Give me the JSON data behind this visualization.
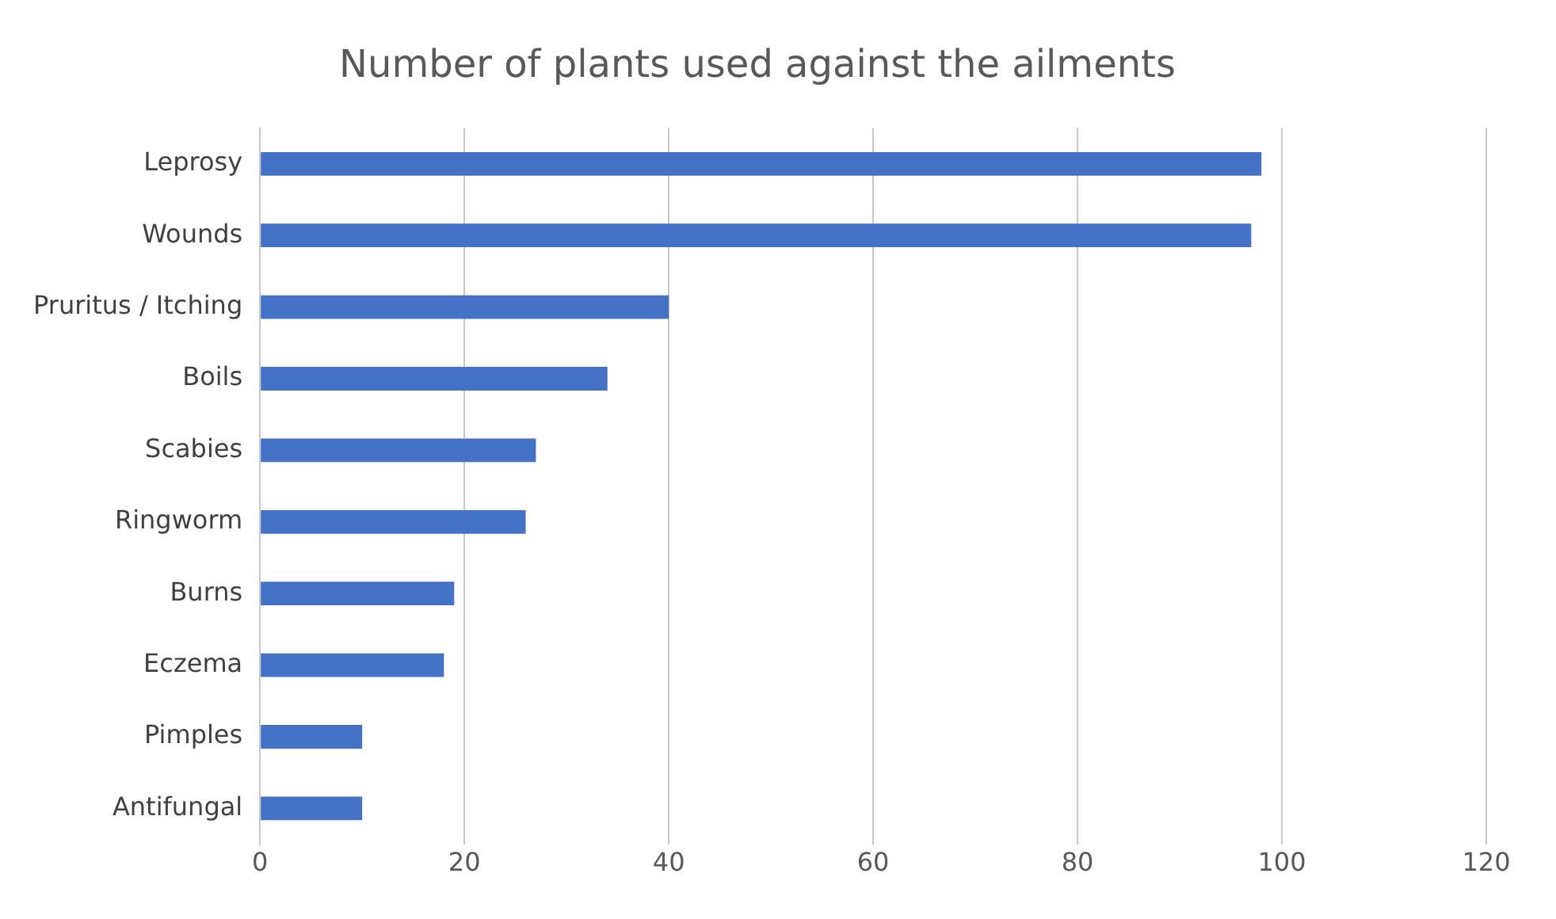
{
  "chart_data": {
    "type": "bar",
    "orientation": "horizontal",
    "title": "Number of plants used against the ailments",
    "categories": [
      "Leprosy",
      "Wounds",
      "Pruritus / Itching",
      "Boils",
      "Scabies",
      "Ringworm",
      "Burns",
      "Eczema",
      "Pimples",
      "Antifungal"
    ],
    "values": [
      98,
      97,
      40,
      34,
      27,
      26,
      19,
      18,
      10,
      10
    ],
    "color": "#4472c4",
    "xlim": [
      0,
      120
    ],
    "xticks": [
      0,
      20,
      40,
      60,
      80,
      100,
      120
    ],
    "grid": "x",
    "legend": false
  }
}
